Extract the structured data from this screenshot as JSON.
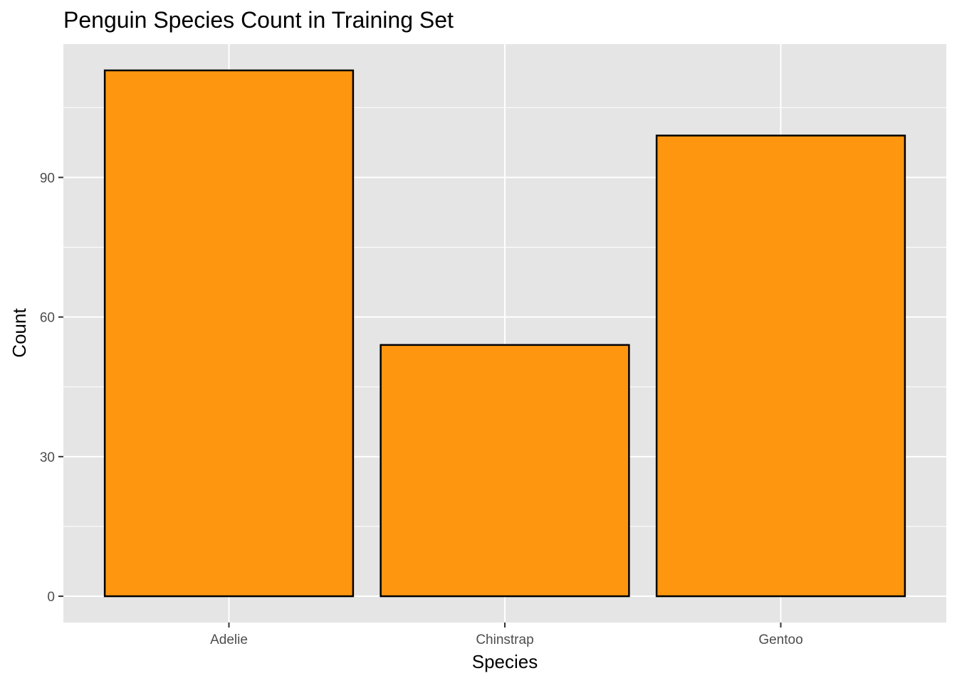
{
  "chart_data": {
    "type": "bar",
    "title": "Penguin Species Count in Training Set",
    "xlabel": "Species",
    "ylabel": "Count",
    "categories": [
      "Adelie",
      "Chinstrap",
      "Gentoo"
    ],
    "values": [
      113,
      54,
      99
    ],
    "ylim": [
      -5.65,
      118.65
    ],
    "y_ticks": [
      0,
      30,
      60,
      90
    ],
    "y_tick_labels": [
      "0",
      "30",
      "60",
      "90"
    ],
    "grid": true,
    "legend": "none",
    "colors": {
      "bar_fill": "#FF9610",
      "bar_stroke": "#000000",
      "panel_bg": "#E5E5E5",
      "grid": "#FFFFFF"
    }
  }
}
